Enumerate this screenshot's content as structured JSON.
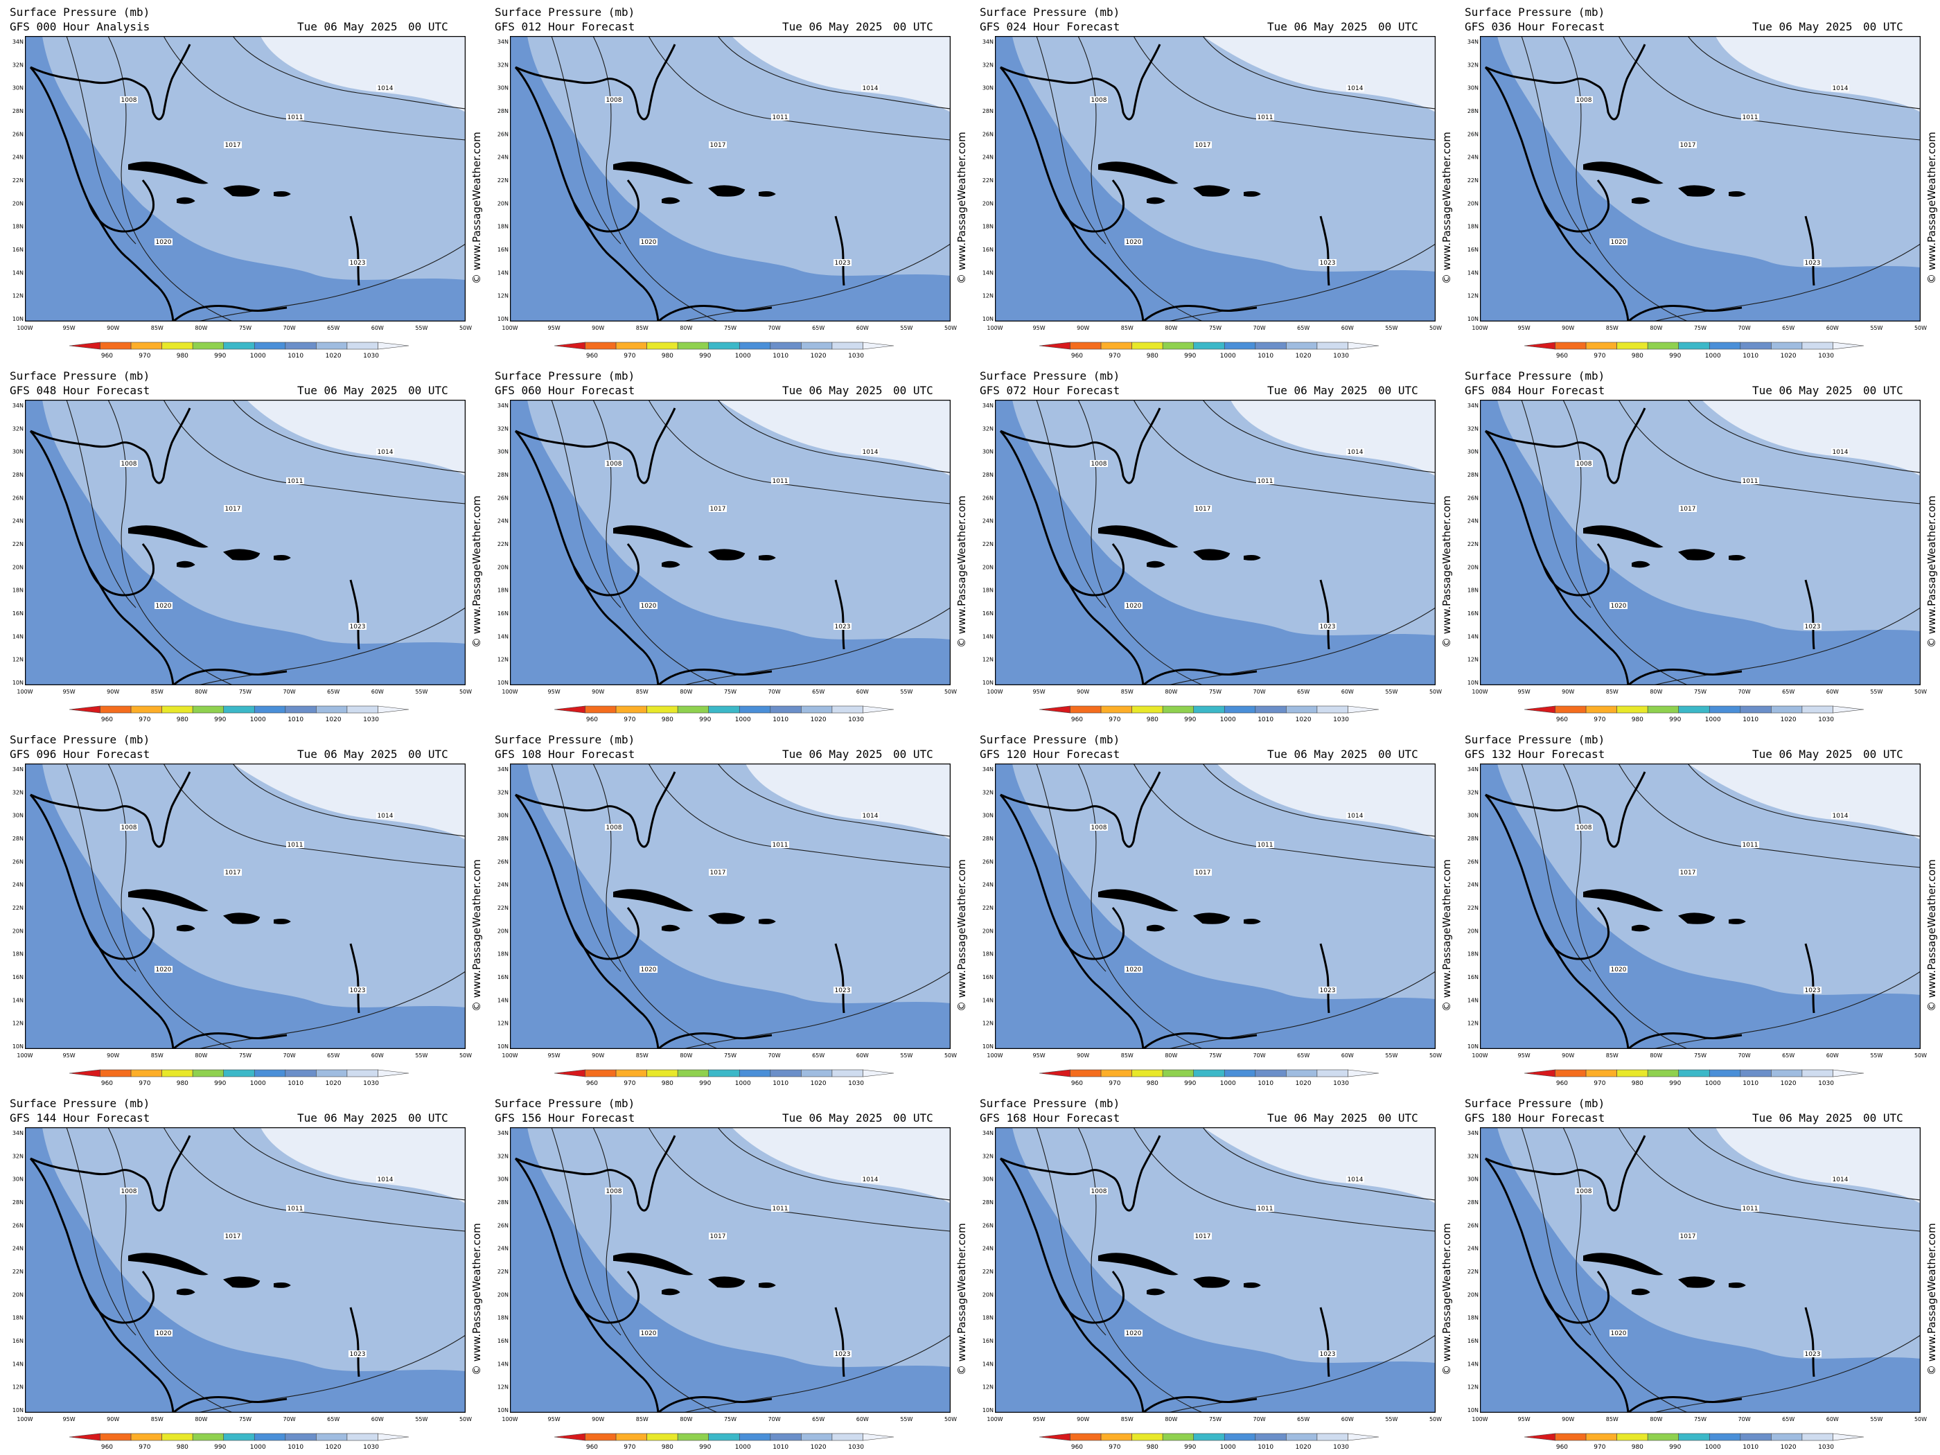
{
  "product": "Surface Pressure (mb)",
  "date": "Tue 06 May 2025",
  "utc": "00 UTC",
  "watermark": "© www.PassageWeather.com",
  "panels": [
    {
      "label": "GFS 000 Hour Analysis"
    },
    {
      "label": "GFS 012 Hour Forecast"
    },
    {
      "label": "GFS 024 Hour Forecast"
    },
    {
      "label": "GFS 036 Hour Forecast"
    },
    {
      "label": "GFS 048 Hour Forecast"
    },
    {
      "label": "GFS 060 Hour Forecast"
    },
    {
      "label": "GFS 072 Hour Forecast"
    },
    {
      "label": "GFS 084 Hour Forecast"
    },
    {
      "label": "GFS 096 Hour Forecast"
    },
    {
      "label": "GFS 108 Hour Forecast"
    },
    {
      "label": "GFS 120 Hour Forecast"
    },
    {
      "label": "GFS 132 Hour Forecast"
    },
    {
      "label": "GFS 144 Hour Forecast"
    },
    {
      "label": "GFS 156 Hour Forecast"
    },
    {
      "label": "GFS 168 Hour Forecast"
    },
    {
      "label": "GFS 180 Hour Forecast"
    }
  ],
  "lat_ticks": [
    "34N",
    "32N",
    "30N",
    "28N",
    "26N",
    "24N",
    "22N",
    "20N",
    "18N",
    "16N",
    "14N",
    "12N",
    "10N"
  ],
  "lon_ticks": [
    "100W",
    "95W",
    "90W",
    "85W",
    "80W",
    "75W",
    "70W",
    "65W",
    "60W",
    "55W",
    "50W"
  ],
  "legend": {
    "ticks": [
      "960",
      "970",
      "980",
      "990",
      "1000",
      "1010",
      "1020",
      "1030"
    ],
    "colors": [
      "#d7191c",
      "#f46d1e",
      "#fdae28",
      "#e8e82a",
      "#8fd14f",
      "#3cb8c8",
      "#4a8fd8",
      "#6b8fc9",
      "#9fbce0",
      "#cfdcef",
      "#eef2fa"
    ]
  },
  "fill_colors": {
    "low": "#6c96d2",
    "mid": "#a7c0e2",
    "high": "#e8eef8",
    "land": "#9ab4db"
  },
  "contour_labels": [
    "1008",
    "1011",
    "1014",
    "1017",
    "1020",
    "1023"
  ]
}
